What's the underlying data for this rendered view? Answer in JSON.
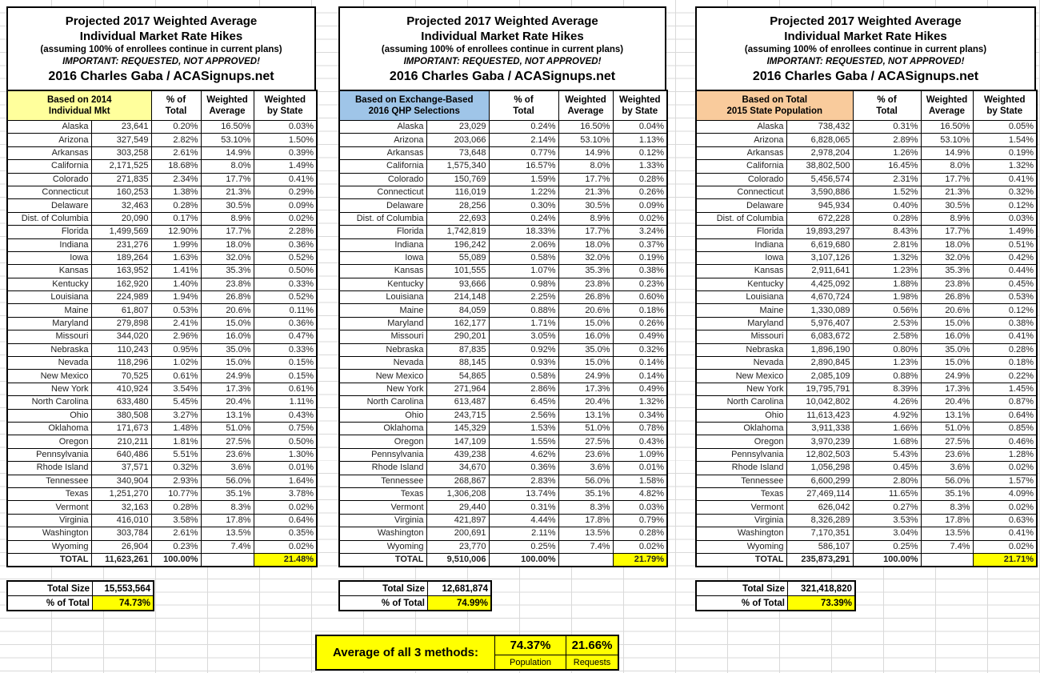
{
  "title": {
    "line1": "Projected 2017 Weighted Average",
    "line2": "Individual Market Rate Hikes",
    "line3": "(assuming 100% of enrollees continue in current plans)",
    "line4": "IMPORTANT: REQUESTED, NOT APPROVED!",
    "line5": "2016 Charles Gaba / ACASignups.net"
  },
  "columns": [
    "% of\nTotal",
    "Weighted\nAverage",
    "Weighted\nby State"
  ],
  "labels": {
    "total": "TOTAL",
    "total_size": "Total Size",
    "pct_of_total": "% of Total"
  },
  "colors": {
    "highlight": "#FFFF00",
    "gridline": "#d9d9d9",
    "border": "#000000"
  },
  "tables": [
    {
      "header_label": "Based on 2014\nIndividual Mkt",
      "header_bg": "#FFFF9C",
      "rows": [
        [
          "Alaska",
          "23,641",
          "0.20%",
          "16.50%",
          "0.03%"
        ],
        [
          "Arizona",
          "327,549",
          "2.82%",
          "53.10%",
          "1.50%"
        ],
        [
          "Arkansas",
          "303,258",
          "2.61%",
          "14.9%",
          "0.39%"
        ],
        [
          "California",
          "2,171,525",
          "18.68%",
          "8.0%",
          "1.49%"
        ],
        [
          "Colorado",
          "271,835",
          "2.34%",
          "17.7%",
          "0.41%"
        ],
        [
          "Connecticut",
          "160,253",
          "1.38%",
          "21.3%",
          "0.29%"
        ],
        [
          "Delaware",
          "32,463",
          "0.28%",
          "30.5%",
          "0.09%"
        ],
        [
          "Dist. of Columbia",
          "20,090",
          "0.17%",
          "8.9%",
          "0.02%"
        ],
        [
          "Florida",
          "1,499,569",
          "12.90%",
          "17.7%",
          "2.28%"
        ],
        [
          "Indiana",
          "231,276",
          "1.99%",
          "18.0%",
          "0.36%"
        ],
        [
          "Iowa",
          "189,264",
          "1.63%",
          "32.0%",
          "0.52%"
        ],
        [
          "Kansas",
          "163,952",
          "1.41%",
          "35.3%",
          "0.50%"
        ],
        [
          "Kentucky",
          "162,920",
          "1.40%",
          "23.8%",
          "0.33%"
        ],
        [
          "Louisiana",
          "224,989",
          "1.94%",
          "26.8%",
          "0.52%"
        ],
        [
          "Maine",
          "61,807",
          "0.53%",
          "20.6%",
          "0.11%"
        ],
        [
          "Maryland",
          "279,898",
          "2.41%",
          "15.0%",
          "0.36%"
        ],
        [
          "Missouri",
          "344,020",
          "2.96%",
          "16.0%",
          "0.47%"
        ],
        [
          "Nebraska",
          "110,243",
          "0.95%",
          "35.0%",
          "0.33%"
        ],
        [
          "Nevada",
          "118,296",
          "1.02%",
          "15.0%",
          "0.15%"
        ],
        [
          "New Mexico",
          "70,525",
          "0.61%",
          "24.9%",
          "0.15%"
        ],
        [
          "New York",
          "410,924",
          "3.54%",
          "17.3%",
          "0.61%"
        ],
        [
          "North Carolina",
          "633,480",
          "5.45%",
          "20.4%",
          "1.11%"
        ],
        [
          "Ohio",
          "380,508",
          "3.27%",
          "13.1%",
          "0.43%"
        ],
        [
          "Oklahoma",
          "171,673",
          "1.48%",
          "51.0%",
          "0.75%"
        ],
        [
          "Oregon",
          "210,211",
          "1.81%",
          "27.5%",
          "0.50%"
        ],
        [
          "Pennsylvania",
          "640,486",
          "5.51%",
          "23.6%",
          "1.30%"
        ],
        [
          "Rhode Island",
          "37,571",
          "0.32%",
          "3.6%",
          "0.01%"
        ],
        [
          "Tennessee",
          "340,904",
          "2.93%",
          "56.0%",
          "1.64%"
        ],
        [
          "Texas",
          "1,251,270",
          "10.77%",
          "35.1%",
          "3.78%"
        ],
        [
          "Vermont",
          "32,163",
          "0.28%",
          "8.3%",
          "0.02%"
        ],
        [
          "Virginia",
          "416,010",
          "3.58%",
          "17.8%",
          "0.64%"
        ],
        [
          "Washington",
          "303,784",
          "2.61%",
          "13.5%",
          "0.35%"
        ],
        [
          "Wyoming",
          "26,904",
          "0.23%",
          "7.4%",
          "0.02%"
        ]
      ],
      "total_market": "11,623,261",
      "total_pct": "100.00%",
      "total_weighted": "21.48%",
      "total_size": "15,553,564",
      "pct_of_total": "74.73%"
    },
    {
      "header_label": "Based on Exchange-Based\n2016 QHP Selections",
      "header_bg": "#9FC5E8",
      "rows": [
        [
          "Alaska",
          "23,029",
          "0.24%",
          "16.50%",
          "0.04%"
        ],
        [
          "Arizona",
          "203,066",
          "2.14%",
          "53.10%",
          "1.13%"
        ],
        [
          "Arkansas",
          "73,648",
          "0.77%",
          "14.9%",
          "0.12%"
        ],
        [
          "California",
          "1,575,340",
          "16.57%",
          "8.0%",
          "1.33%"
        ],
        [
          "Colorado",
          "150,769",
          "1.59%",
          "17.7%",
          "0.28%"
        ],
        [
          "Connecticut",
          "116,019",
          "1.22%",
          "21.3%",
          "0.26%"
        ],
        [
          "Delaware",
          "28,256",
          "0.30%",
          "30.5%",
          "0.09%"
        ],
        [
          "Dist. of Columbia",
          "22,693",
          "0.24%",
          "8.9%",
          "0.02%"
        ],
        [
          "Florida",
          "1,742,819",
          "18.33%",
          "17.7%",
          "3.24%"
        ],
        [
          "Indiana",
          "196,242",
          "2.06%",
          "18.0%",
          "0.37%"
        ],
        [
          "Iowa",
          "55,089",
          "0.58%",
          "32.0%",
          "0.19%"
        ],
        [
          "Kansas",
          "101,555",
          "1.07%",
          "35.3%",
          "0.38%"
        ],
        [
          "Kentucky",
          "93,666",
          "0.98%",
          "23.8%",
          "0.23%"
        ],
        [
          "Louisiana",
          "214,148",
          "2.25%",
          "26.8%",
          "0.60%"
        ],
        [
          "Maine",
          "84,059",
          "0.88%",
          "20.6%",
          "0.18%"
        ],
        [
          "Maryland",
          "162,177",
          "1.71%",
          "15.0%",
          "0.26%"
        ],
        [
          "Missouri",
          "290,201",
          "3.05%",
          "16.0%",
          "0.49%"
        ],
        [
          "Nebraska",
          "87,835",
          "0.92%",
          "35.0%",
          "0.32%"
        ],
        [
          "Nevada",
          "88,145",
          "0.93%",
          "15.0%",
          "0.14%"
        ],
        [
          "New Mexico",
          "54,865",
          "0.58%",
          "24.9%",
          "0.14%"
        ],
        [
          "New York",
          "271,964",
          "2.86%",
          "17.3%",
          "0.49%"
        ],
        [
          "North Carolina",
          "613,487",
          "6.45%",
          "20.4%",
          "1.32%"
        ],
        [
          "Ohio",
          "243,715",
          "2.56%",
          "13.1%",
          "0.34%"
        ],
        [
          "Oklahoma",
          "145,329",
          "1.53%",
          "51.0%",
          "0.78%"
        ],
        [
          "Oregon",
          "147,109",
          "1.55%",
          "27.5%",
          "0.43%"
        ],
        [
          "Pennsylvania",
          "439,238",
          "4.62%",
          "23.6%",
          "1.09%"
        ],
        [
          "Rhode Island",
          "34,670",
          "0.36%",
          "3.6%",
          "0.01%"
        ],
        [
          "Tennessee",
          "268,867",
          "2.83%",
          "56.0%",
          "1.58%"
        ],
        [
          "Texas",
          "1,306,208",
          "13.74%",
          "35.1%",
          "4.82%"
        ],
        [
          "Vermont",
          "29,440",
          "0.31%",
          "8.3%",
          "0.03%"
        ],
        [
          "Virginia",
          "421,897",
          "4.44%",
          "17.8%",
          "0.79%"
        ],
        [
          "Washington",
          "200,691",
          "2.11%",
          "13.5%",
          "0.28%"
        ],
        [
          "Wyoming",
          "23,770",
          "0.25%",
          "7.4%",
          "0.02%"
        ]
      ],
      "total_market": "9,510,006",
      "total_pct": "100.00%",
      "total_weighted": "21.79%",
      "total_size": "12,681,874",
      "pct_of_total": "74.99%"
    },
    {
      "header_label": "Based on Total\n2015 State Population",
      "header_bg": "#F9CB9C",
      "rows": [
        [
          "Alaska",
          "738,432",
          "0.31%",
          "16.50%",
          "0.05%"
        ],
        [
          "Arizona",
          "6,828,065",
          "2.89%",
          "53.10%",
          "1.54%"
        ],
        [
          "Arkansas",
          "2,978,204",
          "1.26%",
          "14.9%",
          "0.19%"
        ],
        [
          "California",
          "38,802,500",
          "16.45%",
          "8.0%",
          "1.32%"
        ],
        [
          "Colorado",
          "5,456,574",
          "2.31%",
          "17.7%",
          "0.41%"
        ],
        [
          "Connecticut",
          "3,590,886",
          "1.52%",
          "21.3%",
          "0.32%"
        ],
        [
          "Delaware",
          "945,934",
          "0.40%",
          "30.5%",
          "0.12%"
        ],
        [
          "Dist. of Columbia",
          "672,228",
          "0.28%",
          "8.9%",
          "0.03%"
        ],
        [
          "Florida",
          "19,893,297",
          "8.43%",
          "17.7%",
          "1.49%"
        ],
        [
          "Indiana",
          "6,619,680",
          "2.81%",
          "18.0%",
          "0.51%"
        ],
        [
          "Iowa",
          "3,107,126",
          "1.32%",
          "32.0%",
          "0.42%"
        ],
        [
          "Kansas",
          "2,911,641",
          "1.23%",
          "35.3%",
          "0.44%"
        ],
        [
          "Kentucky",
          "4,425,092",
          "1.88%",
          "23.8%",
          "0.45%"
        ],
        [
          "Louisiana",
          "4,670,724",
          "1.98%",
          "26.8%",
          "0.53%"
        ],
        [
          "Maine",
          "1,330,089",
          "0.56%",
          "20.6%",
          "0.12%"
        ],
        [
          "Maryland",
          "5,976,407",
          "2.53%",
          "15.0%",
          "0.38%"
        ],
        [
          "Missouri",
          "6,083,672",
          "2.58%",
          "16.0%",
          "0.41%"
        ],
        [
          "Nebraska",
          "1,896,190",
          "0.80%",
          "35.0%",
          "0.28%"
        ],
        [
          "Nevada",
          "2,890,845",
          "1.23%",
          "15.0%",
          "0.18%"
        ],
        [
          "New Mexico",
          "2,085,109",
          "0.88%",
          "24.9%",
          "0.22%"
        ],
        [
          "New York",
          "19,795,791",
          "8.39%",
          "17.3%",
          "1.45%"
        ],
        [
          "North Carolina",
          "10,042,802",
          "4.26%",
          "20.4%",
          "0.87%"
        ],
        [
          "Ohio",
          "11,613,423",
          "4.92%",
          "13.1%",
          "0.64%"
        ],
        [
          "Oklahoma",
          "3,911,338",
          "1.66%",
          "51.0%",
          "0.85%"
        ],
        [
          "Oregon",
          "3,970,239",
          "1.68%",
          "27.5%",
          "0.46%"
        ],
        [
          "Pennsylvania",
          "12,802,503",
          "5.43%",
          "23.6%",
          "1.28%"
        ],
        [
          "Rhode Island",
          "1,056,298",
          "0.45%",
          "3.6%",
          "0.02%"
        ],
        [
          "Tennessee",
          "6,600,299",
          "2.80%",
          "56.0%",
          "1.57%"
        ],
        [
          "Texas",
          "27,469,114",
          "11.65%",
          "35.1%",
          "4.09%"
        ],
        [
          "Vermont",
          "626,042",
          "0.27%",
          "8.3%",
          "0.02%"
        ],
        [
          "Virginia",
          "8,326,289",
          "3.53%",
          "17.8%",
          "0.63%"
        ],
        [
          "Washington",
          "7,170,351",
          "3.04%",
          "13.5%",
          "0.41%"
        ],
        [
          "Wyoming",
          "586,107",
          "0.25%",
          "7.4%",
          "0.02%"
        ]
      ],
      "total_market": "235,873,291",
      "total_pct": "100.00%",
      "total_weighted": "21.71%",
      "total_size": "321,418,820",
      "pct_of_total": "73.39%"
    }
  ],
  "footer": {
    "label": "Average of all 3 methods:",
    "population_value": "74.37%",
    "population_label": "Population",
    "requests_value": "21.66%",
    "requests_label": "Requests"
  }
}
